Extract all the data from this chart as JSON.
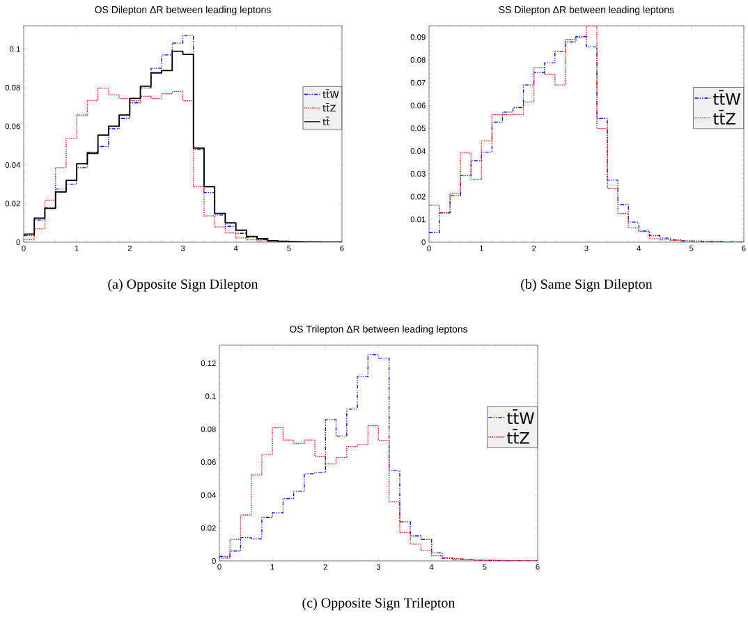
{
  "chart_data": [
    {
      "type": "histogram",
      "title": "OS Dilepton ΔR between leading leptons",
      "annotations": [
        "(a) Opposite Sign Dilepton"
      ],
      "legend": "right",
      "bins": [
        0,
        0.2,
        0.4,
        0.6,
        0.8,
        1,
        1.2,
        1.4,
        1.6,
        1.8,
        2,
        2.2,
        2.4,
        2.6,
        2.8,
        3,
        3.2,
        3.4,
        3.6,
        3.8,
        4,
        4.2,
        4.4,
        4.6,
        4.8,
        5,
        5.2,
        5.4,
        5.6,
        5.8,
        6
      ],
      "xlim": [
        0,
        6
      ],
      "xticks": [
        0,
        1,
        2,
        3,
        4,
        5,
        6
      ],
      "ylim": [
        0,
        0.112
      ],
      "yticks": [
        0,
        0.02,
        0.04,
        0.06,
        0.08,
        0.1
      ],
      "series": [
        {
          "name": "tt̄W",
          "color": "#0000ff",
          "line_style": "dashed",
          "values": [
            0.0034,
            0.0115,
            0.0178,
            0.0275,
            0.03,
            0.0386,
            0.0466,
            0.0495,
            0.0587,
            0.064,
            0.0721,
            0.0798,
            0.09,
            0.0969,
            0.103,
            0.1069,
            0.048,
            0.0257,
            0.0141,
            0.0082,
            0.0046,
            0.0025,
            0.0013,
            0.0006,
            0.0004,
            0.0003,
            0.0002,
            0.0001,
            0.0001,
            0
          ]
        },
        {
          "name": "tt̄Z",
          "color": "#ff0000",
          "line_style": "dotted",
          "values": [
            0.0013,
            0.0069,
            0.0217,
            0.0386,
            0.0537,
            0.0658,
            0.0733,
            0.0797,
            0.0763,
            0.0743,
            0.0732,
            0.0755,
            0.0743,
            0.0768,
            0.078,
            0.0732,
            0.0287,
            0.0136,
            0.0079,
            0.0048,
            0.0022,
            0.0013,
            0.0007,
            0.0004,
            0.0003,
            0.0002,
            0.0001,
            0.0001,
            0,
            0
          ]
        },
        {
          "name": "tt̄",
          "color": "#000000",
          "line_style": "solid",
          "values": [
            0.0042,
            0.0124,
            0.0175,
            0.026,
            0.032,
            0.0406,
            0.046,
            0.0554,
            0.06,
            0.0658,
            0.0744,
            0.0807,
            0.0876,
            0.0888,
            0.0988,
            0.0972,
            0.0487,
            0.0287,
            0.0149,
            0.01,
            0.0062,
            0.003,
            0.0018,
            0.0007,
            0.0005,
            0.0002,
            0.0001,
            0.0001,
            0,
            0
          ]
        }
      ]
    },
    {
      "type": "histogram",
      "title": "SS Dilepton ΔR between leading leptons",
      "annotations": [
        "(b) Same Sign Dilepton"
      ],
      "legend": "right",
      "bins": [
        0,
        0.2,
        0.4,
        0.6,
        0.8,
        1,
        1.2,
        1.4,
        1.6,
        1.8,
        2,
        2.2,
        2.4,
        2.6,
        2.8,
        3,
        3.2,
        3.4,
        3.6,
        3.8,
        4,
        4.2,
        4.4,
        4.6,
        4.8,
        5,
        5.2,
        5.4,
        5.6,
        5.8,
        6
      ],
      "xlim": [
        0,
        6
      ],
      "xticks": [
        0,
        1,
        2,
        3,
        4,
        5,
        6
      ],
      "ylim": [
        0,
        0.095
      ],
      "yticks": [
        0,
        0.01,
        0.02,
        0.03,
        0.04,
        0.05,
        0.06,
        0.07,
        0.08,
        0.09
      ],
      "series": [
        {
          "name": "tt̄W",
          "color": "#0000ff",
          "line_style": "dashed",
          "values": [
            0.0042,
            0.0129,
            0.0204,
            0.0292,
            0.0358,
            0.0395,
            0.0527,
            0.0571,
            0.0591,
            0.069,
            0.0744,
            0.0787,
            0.0838,
            0.0879,
            0.0903,
            0.0857,
            0.0543,
            0.0272,
            0.0165,
            0.0088,
            0.0049,
            0.0029,
            0.0018,
            0.001,
            0.0006,
            0.0005,
            0.0003,
            0.0002,
            0.0001,
            0.0001
          ]
        },
        {
          "name": "tt̄Z",
          "color": "#ff0000",
          "line_style": "dotted",
          "values": [
            0.0162,
            0.0129,
            0.0215,
            0.0392,
            0.0276,
            0.0445,
            0.056,
            0.056,
            0.056,
            0.0615,
            0.0767,
            0.0737,
            0.069,
            0.089,
            0.09,
            0.095,
            0.0499,
            0.0236,
            0.0126,
            0.0062,
            0.0047,
            0.0015,
            0.0011,
            0.0008,
            0.0005,
            0.0005,
            0.0004,
            0.0003,
            0.0002,
            0.0001
          ]
        }
      ]
    },
    {
      "type": "histogram",
      "title": "OS Trilepton ΔR between leading leptons",
      "annotations": [
        "(c) Opposite Sign Trilepton"
      ],
      "legend": "right",
      "bins": [
        0,
        0.2,
        0.4,
        0.6,
        0.8,
        1,
        1.2,
        1.4,
        1.6,
        1.8,
        2,
        2.2,
        2.4,
        2.6,
        2.8,
        3,
        3.2,
        3.4,
        3.6,
        3.8,
        4,
        4.2,
        4.4,
        4.6,
        4.8,
        5,
        5.2,
        5.4,
        5.6,
        5.8,
        6
      ],
      "xlim": [
        0,
        6
      ],
      "xticks": [
        0,
        1,
        2,
        3,
        4,
        5,
        6
      ],
      "ylim": [
        0,
        0.131
      ],
      "yticks": [
        0,
        0.02,
        0.04,
        0.06,
        0.08,
        0.1,
        0.12
      ],
      "series": [
        {
          "name": "tt̄W",
          "color": "#0000ff",
          "line_style": "dashed",
          "values": [
            0.0028,
            0.006,
            0.0141,
            0.0134,
            0.0264,
            0.0292,
            0.0378,
            0.0423,
            0.0529,
            0.0536,
            0.0858,
            0.0758,
            0.0922,
            0.1118,
            0.1253,
            0.1231,
            0.055,
            0.0237,
            0.0152,
            0.013,
            0.0049,
            0.0017,
            0.001,
            0.0008,
            0.0005,
            0.0003,
            0.0002,
            0.0001,
            0.0001,
            0
          ]
        },
        {
          "name": "tt̄Z",
          "color": "#ff0000",
          "line_style": "dotted",
          "values": [
            0.0018,
            0.013,
            0.0279,
            0.0522,
            0.0646,
            0.0809,
            0.0734,
            0.0713,
            0.0734,
            0.0635,
            0.0589,
            0.0628,
            0.0694,
            0.0706,
            0.0821,
            0.0731,
            0.036,
            0.0172,
            0.0102,
            0.0064,
            0.0031,
            0.0018,
            0.0014,
            0.0007,
            0.0004,
            0.0003,
            0.0002,
            0.0001,
            0.0001,
            0
          ]
        }
      ]
    }
  ]
}
